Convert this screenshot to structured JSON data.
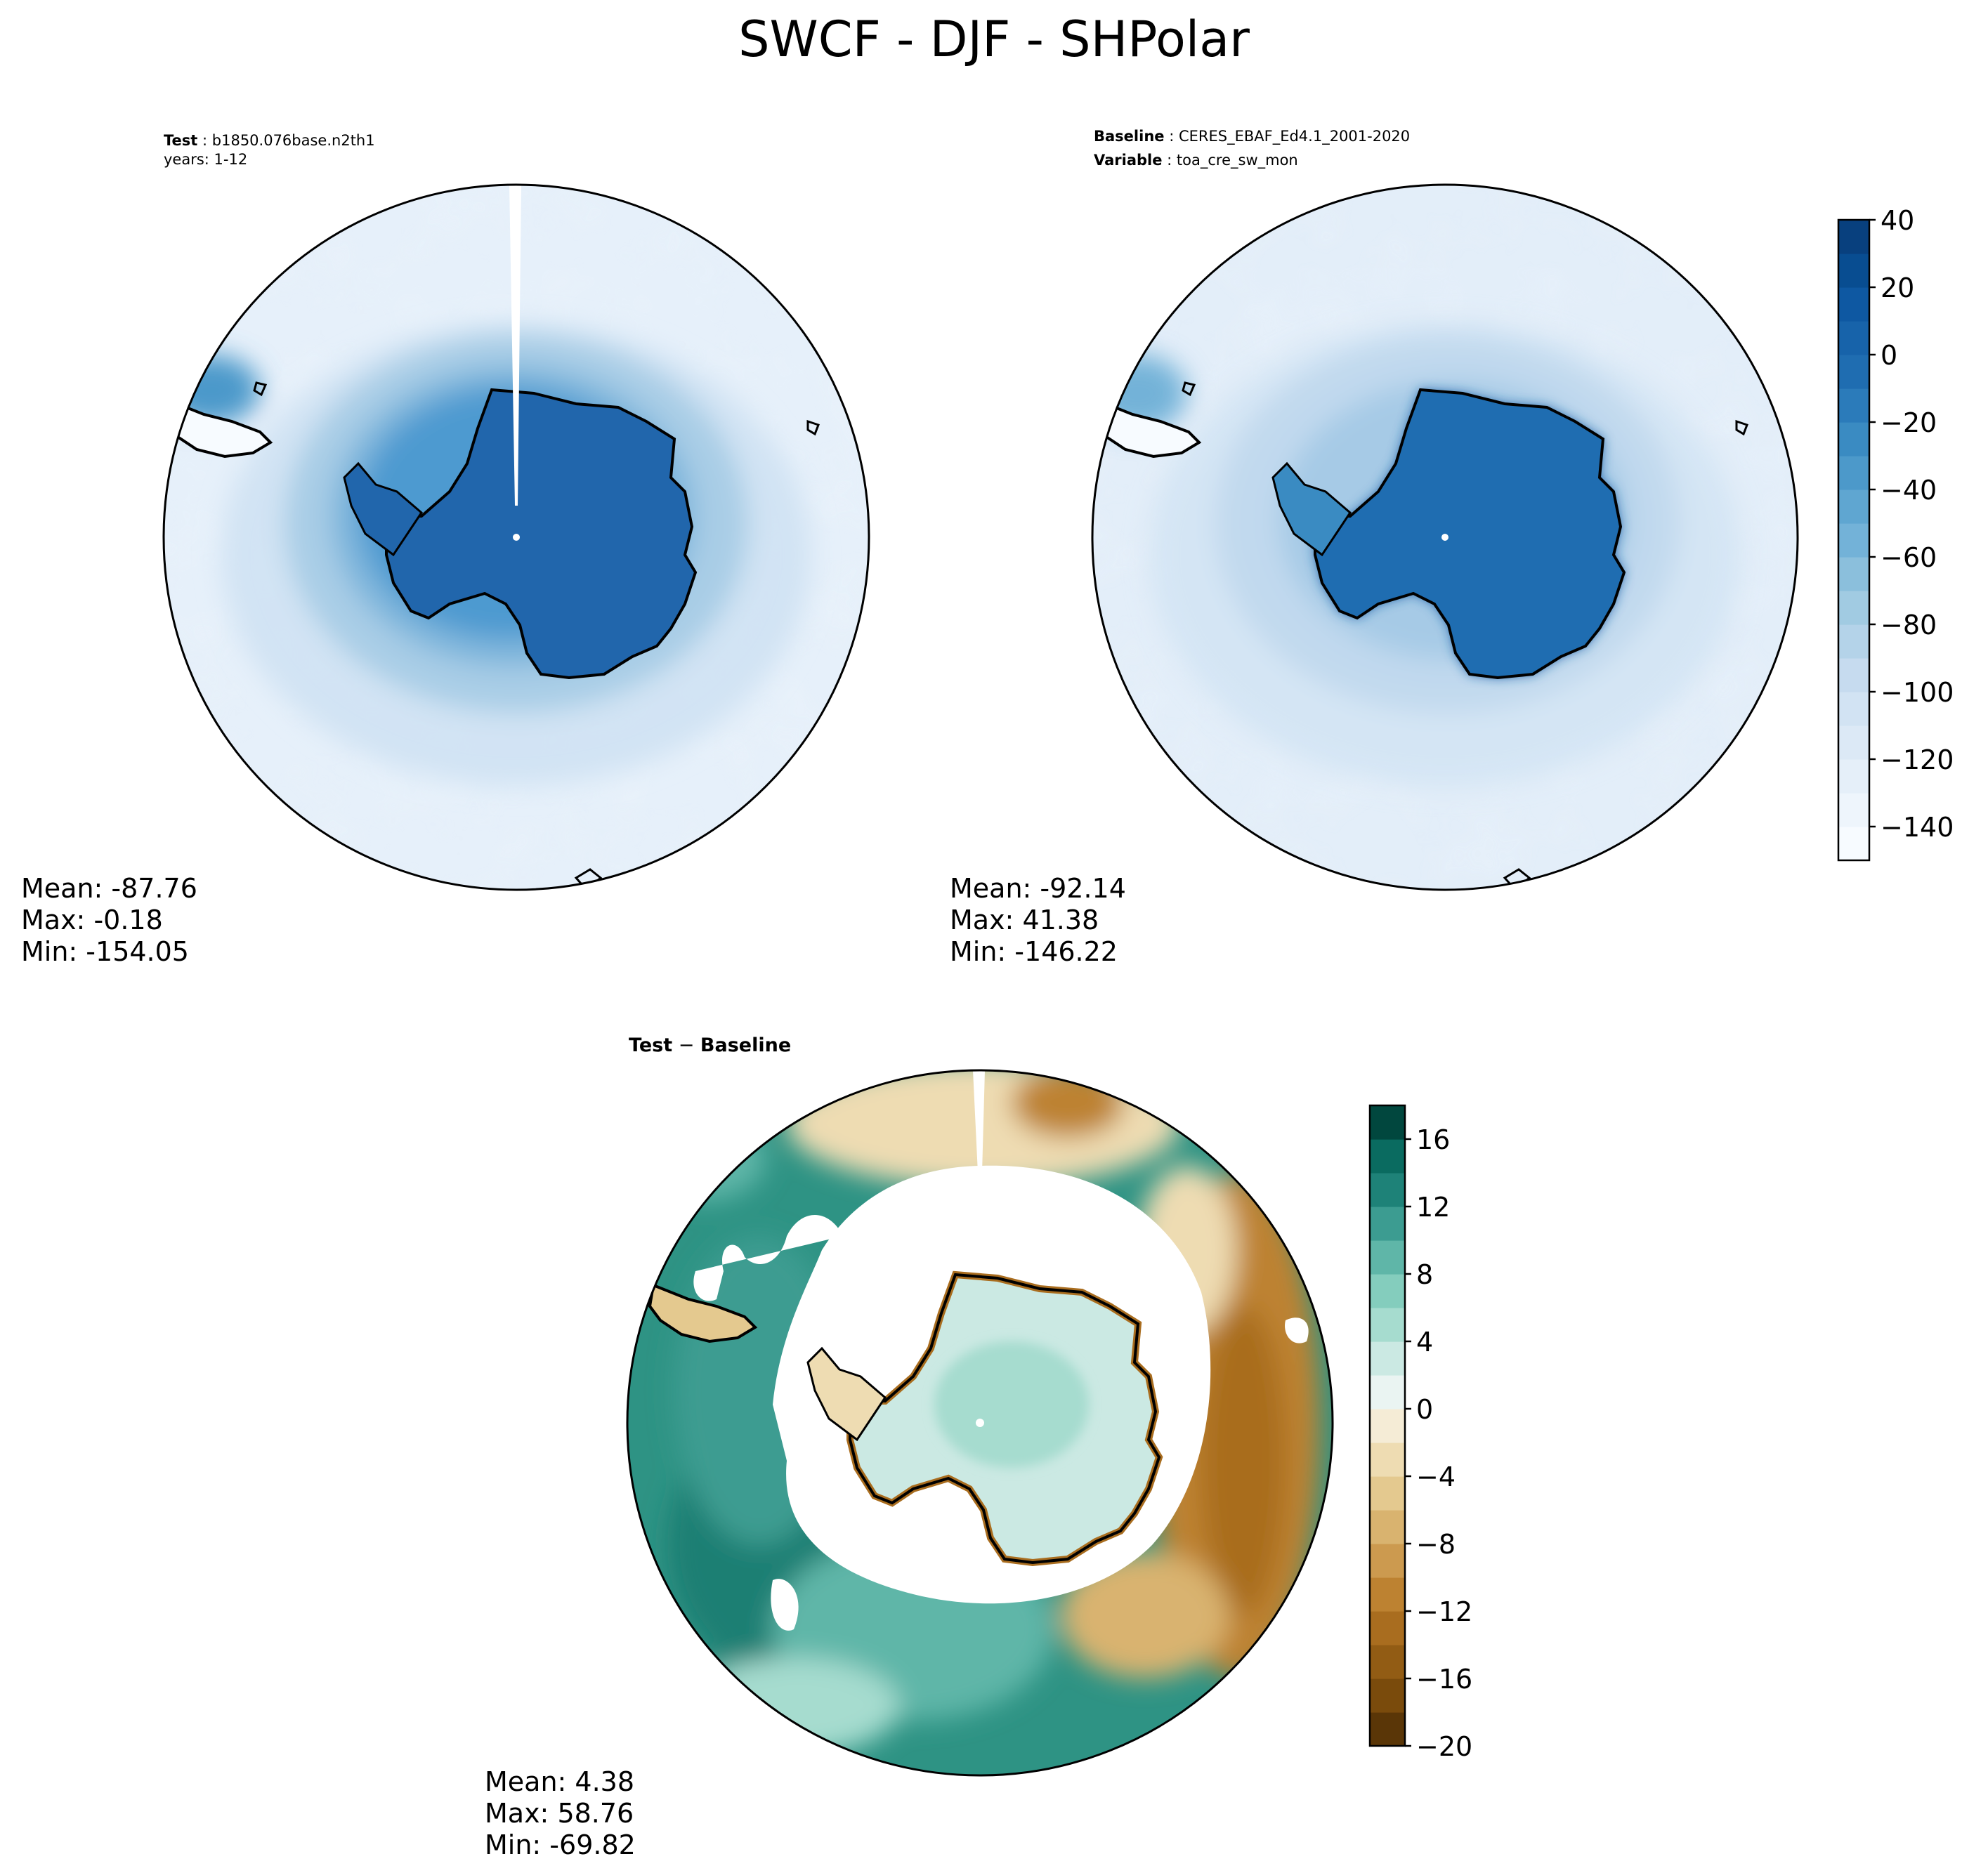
{
  "figure": {
    "title": "SWCF - DJF - SHPolar"
  },
  "colors": {
    "ocean_bg_light": "#dde9f5",
    "land_blue": "#2166ac",
    "coast": "#000000",
    "diff_green": "#1b7f73",
    "diff_brown": "#a9671e"
  },
  "chart_data": [
    {
      "type": "heatmap",
      "projection": "south-polar-stereographic",
      "panel": "test",
      "label_1_bold": "Test",
      "label_1_value": "b1850.076base.n2th1",
      "label_2": "years: 1-12",
      "stats": {
        "mean_label": "Mean: -87.76",
        "max_label": "Max: -0.18",
        "min_label": "Min: -154.05",
        "mean": -87.76,
        "max": -0.18,
        "min": -154.05
      }
    },
    {
      "type": "heatmap",
      "projection": "south-polar-stereographic",
      "panel": "baseline",
      "label_1_bold": "Baseline",
      "label_1_value": "CERES_EBAF_Ed4.1_2001-2020",
      "label_2_bold": "Variable",
      "label_2_value": "toa_cre_sw_mon",
      "stats": {
        "mean_label": "Mean: -92.14",
        "max_label": "Max: 41.38",
        "min_label": "Min: -146.22",
        "mean": -92.14,
        "max": 41.38,
        "min": -146.22
      },
      "colorbar": {
        "range": [
          -150,
          40
        ],
        "ticks": [
          40,
          20,
          0,
          -20,
          -40,
          -60,
          -80,
          -100,
          -120,
          -140
        ],
        "tick_labels": [
          "40",
          "20",
          "0",
          "−20",
          "−40",
          "−60",
          "−80",
          "−100",
          "−120",
          "−140"
        ],
        "levels": [
          -150,
          -140,
          -130,
          -120,
          -110,
          -100,
          -90,
          -80,
          -70,
          -60,
          -50,
          -40,
          -30,
          -20,
          -10,
          0,
          10,
          20,
          30,
          40
        ],
        "level_colors": [
          "#f7fbff",
          "#eef5fc",
          "#e5eff9",
          "#dce9f6",
          "#d2e3f3",
          "#c6dbef",
          "#b4d3e9",
          "#a1cbe2",
          "#8bbfdc",
          "#73b2d8",
          "#5fa6d1",
          "#4c99ca",
          "#3a8bc2",
          "#2b7bba",
          "#1f6db1",
          "#1763aa",
          "#0e58a2",
          "#084d91",
          "#08407e"
        ]
      }
    },
    {
      "type": "heatmap",
      "projection": "south-polar-stereographic",
      "panel": "difference",
      "label_1_bold_a": "Test",
      "label_1_sep": " − ",
      "label_1_bold_b": "Baseline",
      "stats": {
        "mean_label": "Mean:  4.38",
        "max_label": "Max: 58.76",
        "min_label": "Min: -69.82",
        "mean": 4.38,
        "max": 58.76,
        "min": -69.82
      },
      "colorbar": {
        "range": [
          -20,
          18
        ],
        "ticks": [
          16,
          12,
          8,
          4,
          0,
          -4,
          -8,
          -12,
          -16,
          -20
        ],
        "tick_labels": [
          "16",
          "12",
          "8",
          "4",
          "0",
          "−4",
          "−8",
          "−12",
          "−16",
          "−20"
        ],
        "levels": [
          -20,
          -18,
          -16,
          -14,
          -12,
          -10,
          -8,
          -6,
          -4,
          -2,
          0,
          2,
          4,
          6,
          8,
          10,
          12,
          14,
          16,
          18
        ],
        "level_colors": [
          "#5a3607",
          "#7a4b0c",
          "#925c14",
          "#a96d1f",
          "#bd8231",
          "#cc9a4f",
          "#d9b36f",
          "#e4c98f",
          "#eedcb2",
          "#f5ecd6",
          "#eaf4f2",
          "#cbe9e3",
          "#a6dccf",
          "#84cdbd",
          "#5fb6a8",
          "#3c9c91",
          "#1e8278",
          "#0a6b60",
          "#01473e"
        ]
      }
    }
  ]
}
